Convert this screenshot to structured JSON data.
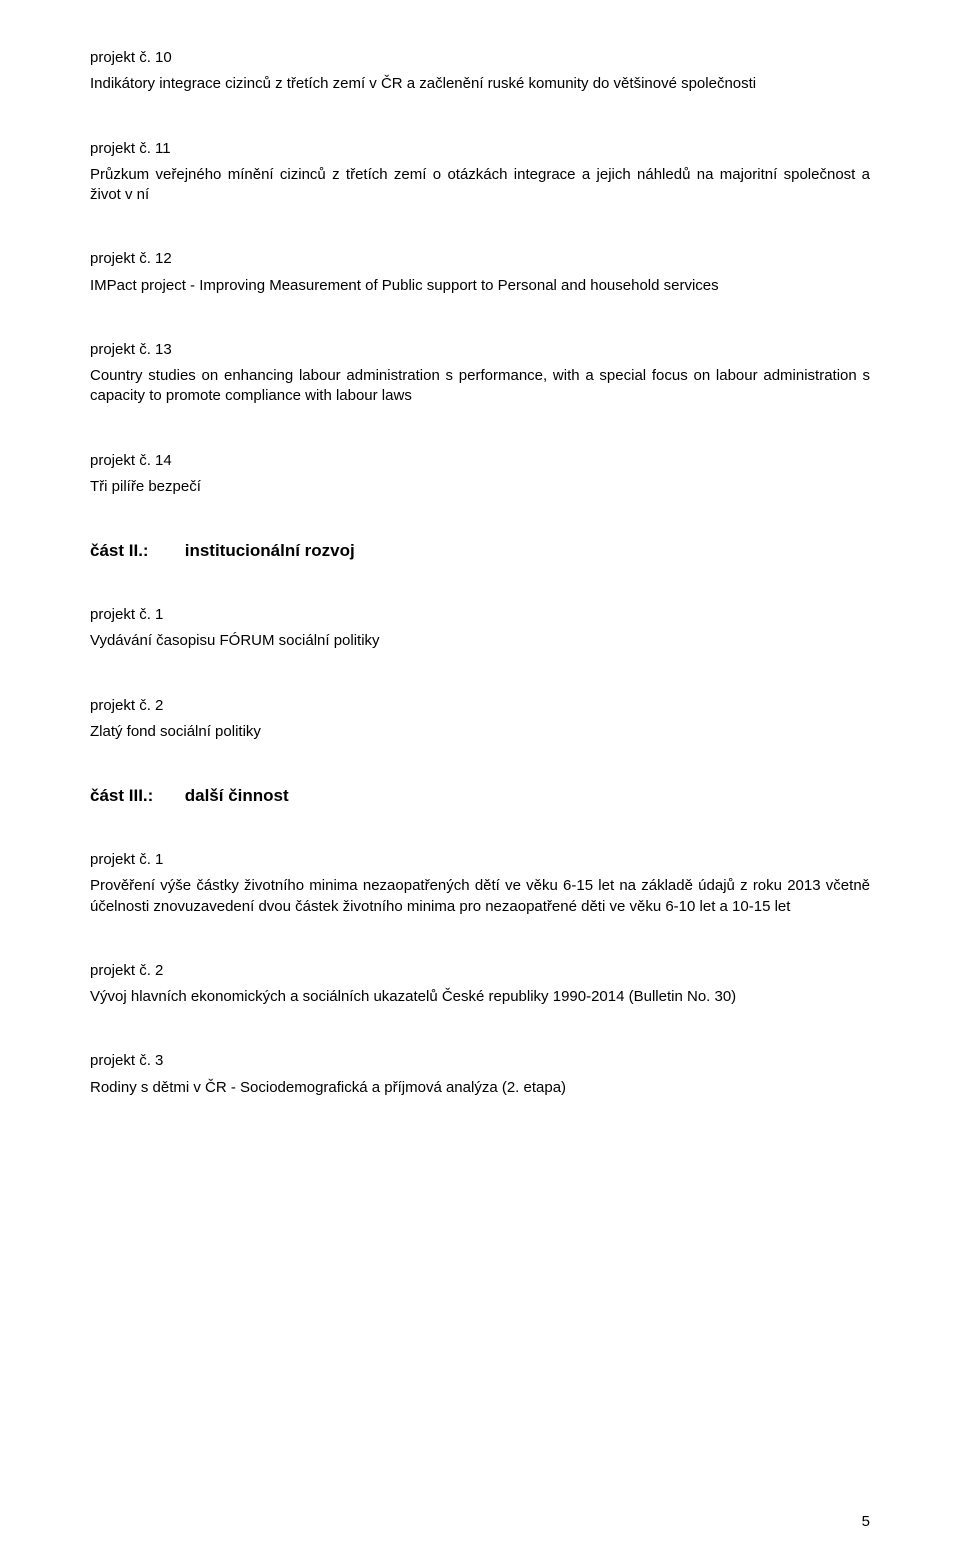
{
  "blocks": [
    {
      "num": "projekt č. 10",
      "desc": "Indikátory integrace cizinců z třetích zemí v ČR a začlenění ruské komunity do většinové společnosti"
    },
    {
      "num": "projekt č. 11",
      "desc": "Průzkum veřejného mínění cizinců z třetích zemí o otázkách integrace a jejich náhledů na majoritní společnost a život v ní"
    },
    {
      "num": "projekt č. 12",
      "desc": "IMPact project - Improving Measurement of Public support to Personal and household services"
    },
    {
      "num": "projekt č. 13",
      "desc": "Country studies on enhancing labour administration s performance, with a special focus on labour administration s capacity to promote compliance with labour laws"
    },
    {
      "num": "projekt č. 14",
      "desc": "Tři pilíře bezpečí"
    }
  ],
  "section2": {
    "label": "část II.:",
    "title": "institucionální rozvoj"
  },
  "s2blocks": [
    {
      "num": "projekt č. 1",
      "desc": "Vydávání časopisu FÓRUM sociální politiky"
    },
    {
      "num": "projekt č. 2",
      "desc": "Zlatý fond sociální politiky"
    }
  ],
  "section3": {
    "label": "část III.:",
    "title": "další činnost"
  },
  "s3blocks": [
    {
      "num": "projekt č. 1",
      "desc": "Prověření výše částky životního minima nezaopatřených dětí ve věku 6-15 let na základě údajů z roku 2013 včetně účelnosti znovuzavedení dvou částek životního minima pro nezaopatřené děti ve věku 6-10 let a 10-15 let"
    },
    {
      "num": "projekt č. 2",
      "desc": "Vývoj hlavních ekonomických a sociálních ukazatelů České republiky 1990-2014 (Bulletin No. 30)"
    },
    {
      "num": "projekt č. 3",
      "desc": "Rodiny s dětmi v ČR - Sociodemografická a příjmová analýza (2. etapa)"
    }
  ],
  "pageNumber": "5"
}
